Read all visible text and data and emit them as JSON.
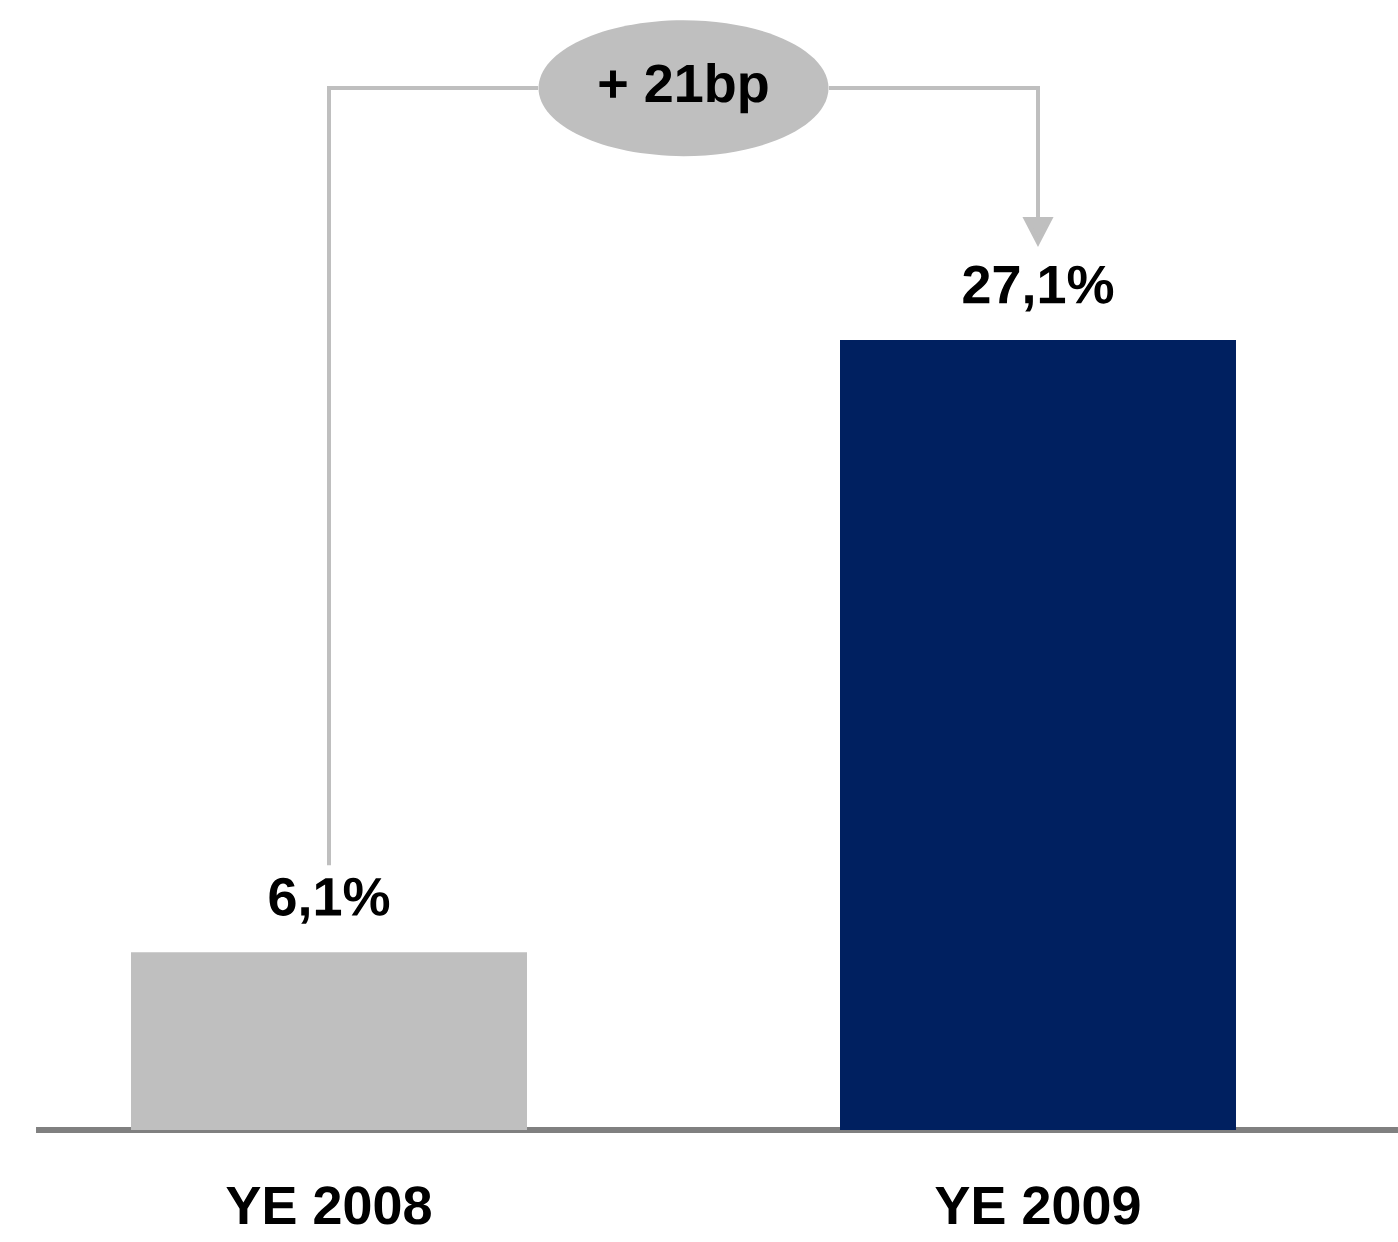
{
  "chart_data": {
    "type": "bar",
    "categories": [
      "YE 2008",
      "YE 2009"
    ],
    "values": [
      6.1,
      27.1
    ],
    "colors": [
      "#bfbfbf",
      "#002060"
    ],
    "value_labels": [
      "6,1%",
      "27,1%"
    ],
    "annotations": [
      "+ 21bp"
    ]
  }
}
